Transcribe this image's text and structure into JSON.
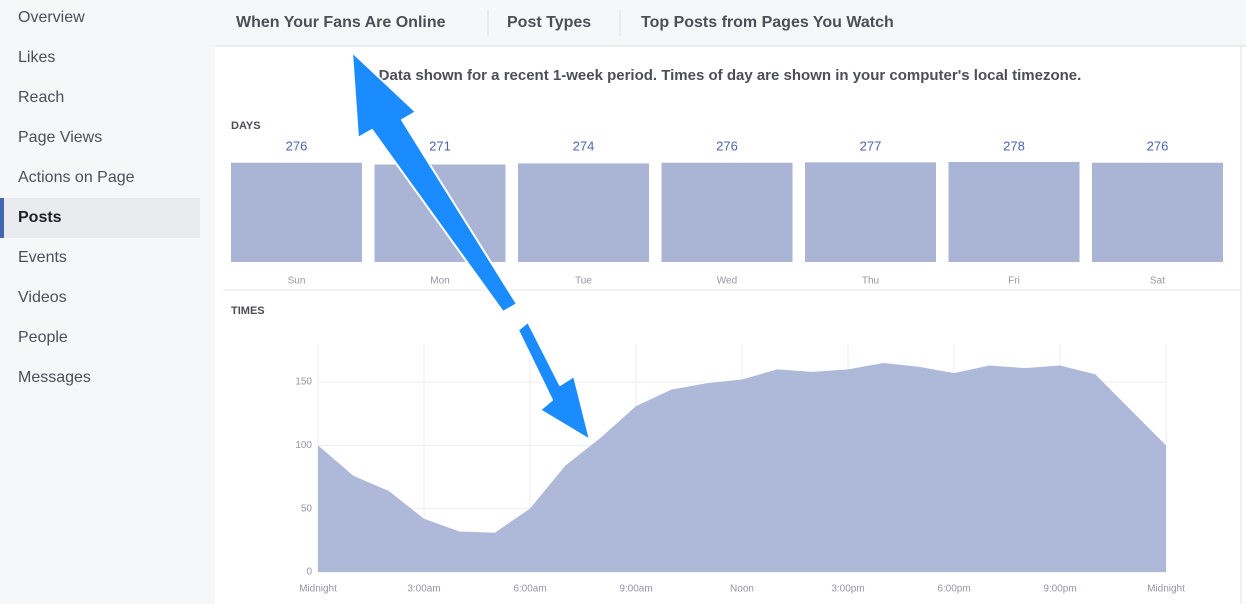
{
  "sidebar": {
    "items": [
      "Overview",
      "Likes",
      "Reach",
      "Page Views",
      "Actions on Page",
      "Posts",
      "Events",
      "Videos",
      "People",
      "Messages"
    ],
    "selected": 5
  },
  "tabs": [
    "When Your Fans Are Online",
    "Post Types",
    "Top Posts from Pages You Watch"
  ],
  "note": "Data shown for a recent 1-week period. Times of day are shown in your computer's local timezone.",
  "chart_data": [
    {
      "type": "bar",
      "title": "DAYS",
      "color": "#aab4d4",
      "categories": [
        "Sun",
        "Mon",
        "Tue",
        "Wed",
        "Thu",
        "Fri",
        "Sat"
      ],
      "values": [
        276,
        271,
        274,
        276,
        277,
        278,
        276
      ]
    },
    {
      "type": "area",
      "title": "TIMES",
      "color": "#aeb8d8",
      "x": [
        0,
        1,
        2,
        3,
        4,
        5,
        6,
        7,
        8,
        9,
        10,
        11,
        12,
        13,
        14,
        15,
        16,
        17,
        18,
        19,
        20,
        21,
        22,
        23,
        24
      ],
      "values": [
        100,
        76,
        64,
        42,
        32,
        31,
        50,
        84,
        106,
        131,
        144,
        149,
        152,
        160,
        158,
        160,
        165,
        162,
        157,
        163,
        161,
        163,
        156,
        128,
        100
      ],
      "xlim": [
        0,
        24
      ],
      "xticks": [
        {
          "value": 0,
          "label": "Midnight"
        },
        {
          "value": 3,
          "label": "3:00am"
        },
        {
          "value": 6,
          "label": "6:00am"
        },
        {
          "value": 9,
          "label": "9:00am"
        },
        {
          "value": 12,
          "label": "Noon"
        },
        {
          "value": 15,
          "label": "3:00pm"
        },
        {
          "value": 18,
          "label": "6:00pm"
        },
        {
          "value": 21,
          "label": "9:00pm"
        },
        {
          "value": 24,
          "label": "Midnight"
        }
      ],
      "ylim": [
        0,
        180
      ],
      "yticks": [
        0,
        50,
        100,
        150
      ],
      "grid": true
    }
  ]
}
